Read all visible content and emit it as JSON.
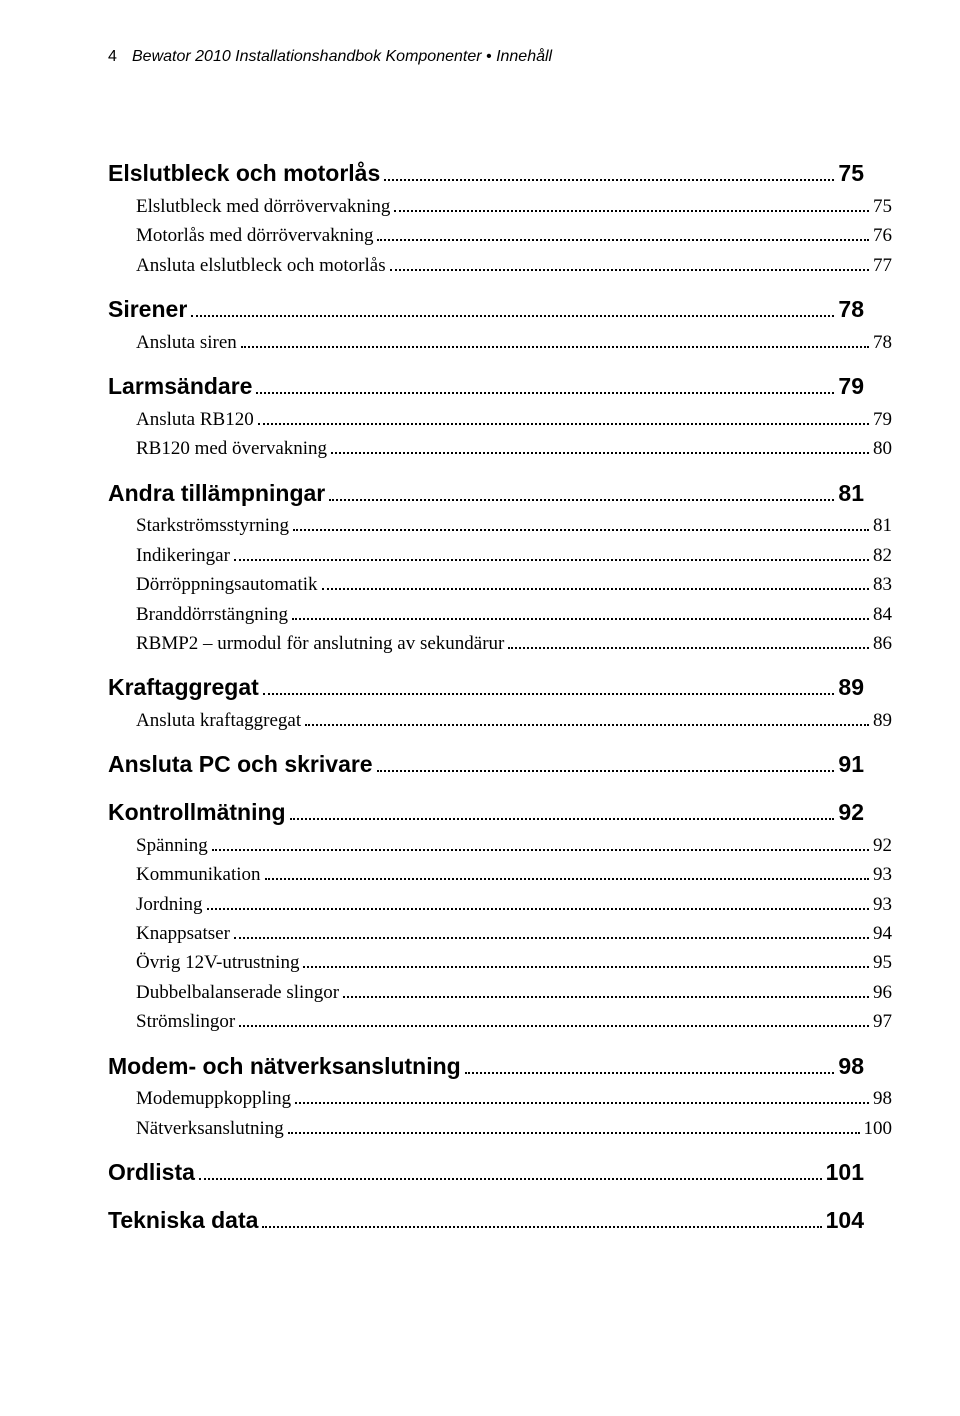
{
  "header": {
    "page_number": "4",
    "text": "Bewator 2010 Installationshandbok Komponenter • Innehåll"
  },
  "toc": [
    {
      "level": 1,
      "label": "Elslutbleck och motorlås",
      "page": "75"
    },
    {
      "level": 2,
      "label": "Elslutbleck med dörrövervakning",
      "page": "75"
    },
    {
      "level": 2,
      "label": "Motorlås med dörrövervakning",
      "page": "76"
    },
    {
      "level": 2,
      "label": "Ansluta elslutbleck och motorlås",
      "page": "77"
    },
    {
      "level": 1,
      "label": "Sirener",
      "page": "78"
    },
    {
      "level": 2,
      "label": "Ansluta siren",
      "page": "78"
    },
    {
      "level": 1,
      "label": "Larmsändare",
      "page": "79"
    },
    {
      "level": 2,
      "label": "Ansluta RB120",
      "page": "79"
    },
    {
      "level": 2,
      "label": "RB120 med övervakning",
      "page": "80"
    },
    {
      "level": 1,
      "label": "Andra tillämpningar",
      "page": "81"
    },
    {
      "level": 2,
      "label": "Starkströmsstyrning",
      "page": "81"
    },
    {
      "level": 2,
      "label": "Indikeringar",
      "page": "82"
    },
    {
      "level": 2,
      "label": "Dörröppningsautomatik",
      "page": "83"
    },
    {
      "level": 2,
      "label": "Branddörrstängning",
      "page": "84"
    },
    {
      "level": 2,
      "label": "RBMP2 – urmodul för anslutning av sekundärur",
      "page": "86"
    },
    {
      "level": 1,
      "label": "Kraftaggregat",
      "page": "89"
    },
    {
      "level": 2,
      "label": "Ansluta kraftaggregat",
      "page": "89"
    },
    {
      "level": 1,
      "label": "Ansluta PC och skrivare",
      "page": "91"
    },
    {
      "level": 1,
      "label": "Kontrollmätning",
      "page": "92"
    },
    {
      "level": 2,
      "label": "Spänning",
      "page": "92"
    },
    {
      "level": 2,
      "label": "Kommunikation",
      "page": "93"
    },
    {
      "level": 2,
      "label": "Jordning",
      "page": "93"
    },
    {
      "level": 2,
      "label": "Knappsatser",
      "page": "94"
    },
    {
      "level": 2,
      "label": "Övrig 12V-utrustning",
      "page": "95"
    },
    {
      "level": 2,
      "label": "Dubbelbalanserade slingor",
      "page": "96"
    },
    {
      "level": 2,
      "label": "Strömslingor",
      "page": "97"
    },
    {
      "level": 1,
      "label": "Modem- och nätverksanslutning",
      "page": "98"
    },
    {
      "level": 2,
      "label": "Modemuppkoppling",
      "page": "98"
    },
    {
      "level": 2,
      "label": "Nätverksanslutning",
      "page": "100"
    },
    {
      "level": 1,
      "label": "Ordlista",
      "page": "101"
    },
    {
      "level": 1,
      "label": "Tekniska data",
      "page": "104"
    }
  ]
}
